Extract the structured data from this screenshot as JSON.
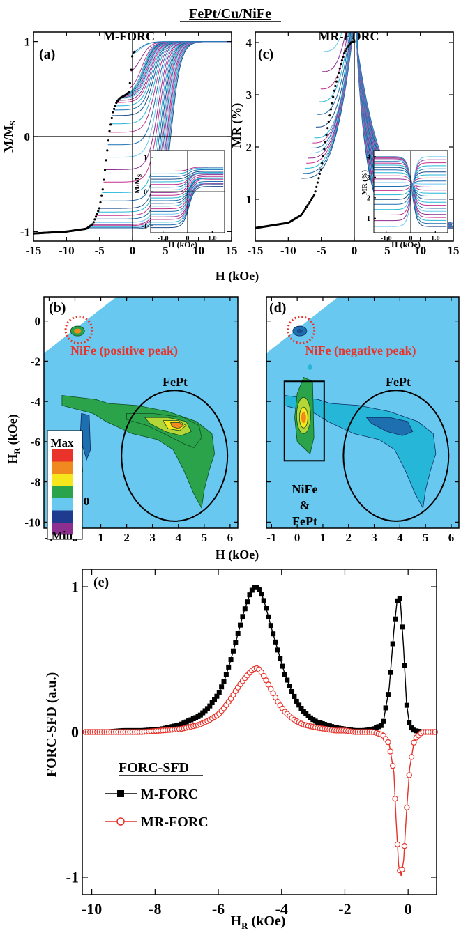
{
  "figure": {
    "title": "FePt/Cu/NiFe",
    "colors": {
      "black": "#000000",
      "red": "#e8322a",
      "sky": "#69c8f0",
      "green": "#2aa34a",
      "yellow": "#f6e61c",
      "orange": "#f08a1f",
      "navy": "#1f3b8f",
      "purple": "#8d2f8f",
      "cyan": "#25b6d8",
      "magenta": "#c2308c",
      "blue": "#1d6fb0",
      "darkblue": "#1c4c8c"
    }
  },
  "chart_data": [
    {
      "id": "a",
      "type": "line",
      "panel_label": "(a)",
      "column_title": "M-FORC",
      "xlabel": "H (kOe)",
      "ylabel": "M/M",
      "ylabel_sub": "S",
      "xlim": [
        -15,
        15
      ],
      "ylim": [
        -1.1,
        1.1
      ],
      "xticks": [
        "-15",
        "-10",
        "-5",
        "0",
        "5",
        "10",
        "15"
      ],
      "yticks": [
        "-1",
        "0",
        "1"
      ],
      "major_loop": {
        "x": [
          -15,
          -10,
          -7,
          -6,
          -5,
          -4.5,
          -4,
          -3.5,
          -3,
          -2.5,
          -2,
          -1,
          -0.5,
          0,
          0.5,
          1,
          2,
          5,
          10,
          15
        ],
        "y": [
          -1.02,
          -1,
          -0.97,
          -0.92,
          -0.75,
          -0.55,
          -0.25,
          0.05,
          0.25,
          0.35,
          0.4,
          0.44,
          0.47,
          0.88,
          0.9,
          0.92,
          0.95,
          0.97,
          0.99,
          1
        ]
      },
      "inset": {
        "xlabel": "H (kOe)",
        "ylabel": "M/M",
        "ylabel_sub": "S",
        "xlim": [
          -1.5,
          1.5
        ],
        "ylim": [
          -1.2,
          1.2
        ],
        "xticks": [
          "-1.0",
          "0",
          "1.0"
        ],
        "yticks": [
          "-1",
          "0",
          "1"
        ]
      }
    },
    {
      "id": "c",
      "type": "line",
      "panel_label": "(c)",
      "column_title": "MR-FORC",
      "xlabel": "H (kOe)",
      "ylabel": "MR (%)",
      "xlim": [
        -15,
        15
      ],
      "ylim": [
        0.2,
        4.2
      ],
      "xticks": [
        "-15",
        "-10",
        "-5",
        "0",
        "5",
        "10",
        "15"
      ],
      "yticks": [
        "1",
        "2",
        "3",
        "4"
      ],
      "major_loop": {
        "x": [
          -15,
          -10,
          -8,
          -6,
          -5,
          -4,
          -3,
          -2,
          -1.5,
          -1,
          -0.5,
          0
        ],
        "y": [
          0.45,
          0.55,
          0.7,
          1.1,
          1.6,
          2.4,
          3.1,
          3.6,
          3.8,
          3.92,
          4.0,
          4.02
        ]
      },
      "inset": {
        "xlabel": "H (kOe)",
        "ylabel": "MR (%)",
        "xlim": [
          -1.5,
          1.5
        ],
        "ylim": [
          0.3,
          4.3
        ],
        "xticks": [
          "-1.0",
          "0",
          "1.0"
        ],
        "yticks": [
          "1",
          "2",
          "3",
          "4"
        ]
      }
    },
    {
      "id": "b",
      "type": "heatmap",
      "panel_label": "(b)",
      "xlabel": "H (kOe)",
      "ylabel": "H",
      "ylabel_sub": "R",
      "ylabel_unit": " (kOe)",
      "xlim": [
        -1.2,
        6.3
      ],
      "ylim": [
        -10.3,
        1.2
      ],
      "xticks": [
        "-1",
        "0",
        "1",
        "2",
        "3",
        "4",
        "5",
        "6"
      ],
      "yticks": [
        "0",
        "-2",
        "-4",
        "-6",
        "-8",
        "-10"
      ],
      "annotations": {
        "nife": "NiFe (positive peak)",
        "fept": "FePt"
      },
      "colorbar": {
        "max": "Max",
        "zero": "0",
        "min": "Min"
      },
      "peak": {
        "H": 4.0,
        "HR": -5.1
      }
    },
    {
      "id": "d",
      "type": "heatmap",
      "panel_label": "(d)",
      "xlabel": "H (kOe)",
      "xlim": [
        -1.2,
        6.3
      ],
      "ylim": [
        -10.3,
        1.2
      ],
      "xticks": [
        "-1",
        "0",
        "1",
        "2",
        "3",
        "4",
        "5",
        "6"
      ],
      "annotations": {
        "nife": "NiFe (negative peak)",
        "fept": "FePt",
        "mixed_line1": "NiFe",
        "mixed_line2": "&",
        "mixed_line3": "FePt"
      },
      "peak": {
        "H": 0.2,
        "HR": -4.8
      }
    },
    {
      "id": "e",
      "type": "line",
      "panel_label": "(e)",
      "xlabel": "H",
      "xlabel_sub": "R",
      "xlabel_unit": " (kOe)",
      "ylabel": "FORC-SFD (a.u.)",
      "xlim": [
        -10.3,
        0.9
      ],
      "ylim": [
        -1.12,
        1.12
      ],
      "xticks": [
        "-10",
        "-8",
        "-6",
        "-4",
        "-2",
        "0"
      ],
      "yticks": [
        "-1",
        "0",
        "1"
      ],
      "legend": {
        "title": "FORC-SFD",
        "position": "bottom-left"
      },
      "series": [
        {
          "name": "M-FORC",
          "marker": "filled-square",
          "color": "#000000",
          "x": [
            -10.2,
            -9.6,
            -9.0,
            -8.4,
            -7.8,
            -7.2,
            -6.6,
            -6.3,
            -6.0,
            -5.8,
            -5.6,
            -5.4,
            -5.2,
            -5.0,
            -4.9,
            -4.8,
            -4.7,
            -4.6,
            -4.5,
            -4.3,
            -4.1,
            -3.9,
            -3.7,
            -3.5,
            -3.3,
            -3.1,
            -2.9,
            -2.6,
            -2.3,
            -2.0,
            -1.7,
            -1.4,
            -1.1,
            -0.8,
            -0.6,
            -0.45,
            -0.35,
            -0.25,
            -0.15,
            -0.05,
            0.05,
            0.2,
            0.45,
            0.85
          ],
          "y": [
            0.0,
            0.0,
            0.01,
            0.01,
            0.02,
            0.05,
            0.11,
            0.17,
            0.26,
            0.36,
            0.5,
            0.66,
            0.82,
            0.95,
            0.99,
            1.0,
            0.98,
            0.93,
            0.86,
            0.7,
            0.55,
            0.4,
            0.29,
            0.2,
            0.14,
            0.1,
            0.07,
            0.05,
            0.03,
            0.02,
            0.01,
            0.01,
            0.02,
            0.05,
            0.3,
            0.7,
            0.9,
            0.92,
            0.6,
            0.2,
            0.04,
            0.01,
            0.0,
            0.0
          ]
        },
        {
          "name": "MR-FORC",
          "marker": "open-circle",
          "color": "#e8322a",
          "x": [
            -10.2,
            -9.6,
            -9.0,
            -8.4,
            -7.8,
            -7.2,
            -6.6,
            -6.3,
            -6.0,
            -5.8,
            -5.6,
            -5.4,
            -5.2,
            -5.0,
            -4.9,
            -4.8,
            -4.7,
            -4.6,
            -4.5,
            -4.3,
            -4.1,
            -3.9,
            -3.7,
            -3.5,
            -3.3,
            -3.1,
            -2.9,
            -2.6,
            -2.3,
            -2.0,
            -1.7,
            -1.4,
            -1.1,
            -0.8,
            -0.6,
            -0.45,
            -0.38,
            -0.3,
            -0.22,
            -0.14,
            -0.05,
            0.05,
            0.2,
            0.45,
            0.85
          ],
          "y": [
            0.0,
            0.0,
            0.0,
            0.0,
            0.01,
            0.02,
            0.05,
            0.08,
            0.12,
            0.17,
            0.23,
            0.3,
            0.36,
            0.41,
            0.43,
            0.44,
            0.43,
            0.4,
            0.36,
            0.28,
            0.2,
            0.14,
            0.1,
            0.07,
            0.05,
            0.04,
            0.03,
            0.02,
            0.01,
            0.01,
            0.0,
            0.0,
            0.0,
            -0.02,
            -0.08,
            -0.28,
            -0.6,
            -0.92,
            -0.99,
            -0.88,
            -0.55,
            -0.25,
            -0.05,
            0.0,
            0.0
          ]
        }
      ]
    }
  ]
}
